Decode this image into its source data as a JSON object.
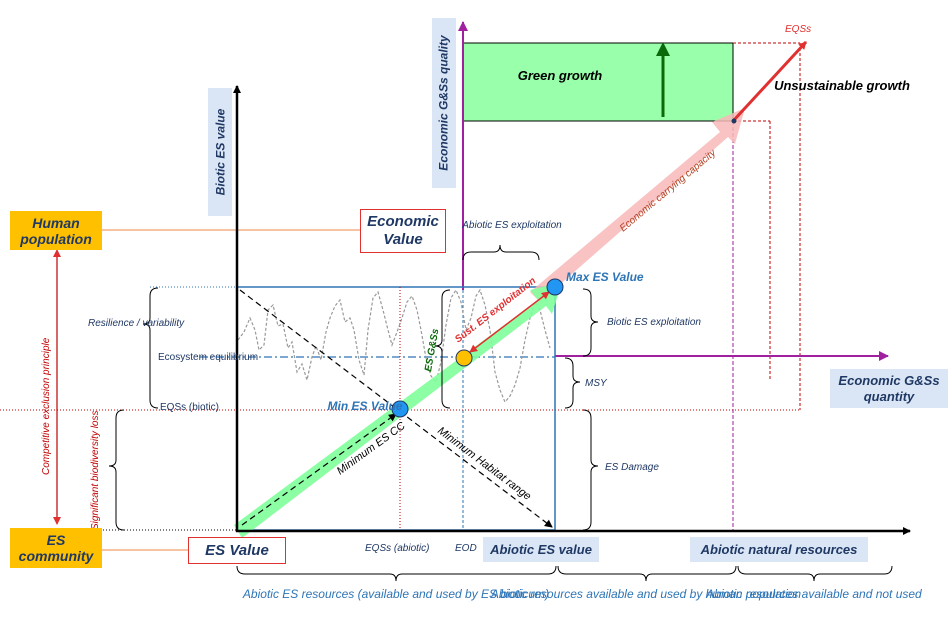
{
  "labels": {
    "biotic_es_value": "Biotic ES value",
    "economic_gss_quality": "Economic G&Ss quality",
    "human_population": "Human population",
    "es_community": "ES community",
    "economic_value": "Economic Value",
    "es_value": "ES Value",
    "abiotic_es_value": "Abiotic ES value",
    "abiotic_natural_resources": "Abiotic natural resources",
    "economic_gss_quantity": "Economic G&Ss quantity",
    "green_growth": "Green growth",
    "unsustainable_growth": "Unsustainable growth",
    "eqss_top": "EQSs",
    "economic_carrying_capacity": "Economic carrying capacity",
    "abiotic_es_exploitation": "Abiotic ES exploitation",
    "max_es_value": "Max ES Value",
    "min_es_value": "Min ES Value",
    "sust_es_exploitation": "Sust. ES exploitation",
    "es_gss": "ES G&Ss",
    "minimum_es_cc": "Minimum ES CC",
    "minimum_habitat_range": "Minimum Habitat range",
    "biotic_es_exploitation": "Biotic ES exploitation",
    "msy": "MSY",
    "es_damage": "ES Damage",
    "resilience_variability": "Resilience / variability",
    "ecosystem_equilibrium": "Ecosystem equilibrium",
    "eqss_biotic": "EQSs (biotic)",
    "eqss_abiotic": "EQSs (abiotic)",
    "eod": "EOD",
    "competitive_exclusion": "Competitive exclusion principle",
    "significant_biodiversity_loss": "Significant biodiversity loss",
    "abiotic_es_resources": "Abiotic ES resources (available and used by ES bioticum)",
    "abiotic_resources_used": "Abiotic resources available and used by human population",
    "abiotic_resources_not_used": "Abiotic resources available and not used"
  },
  "colors": {
    "navy": "#1f3864",
    "blue": "#2e75b6",
    "red": "#e03030",
    "purple": "#a020a0",
    "green_fill": "#99ffaa",
    "green_arrow": "#0a6a0a",
    "orange": "#ffc000",
    "light_blue": "#dae6f5"
  }
}
